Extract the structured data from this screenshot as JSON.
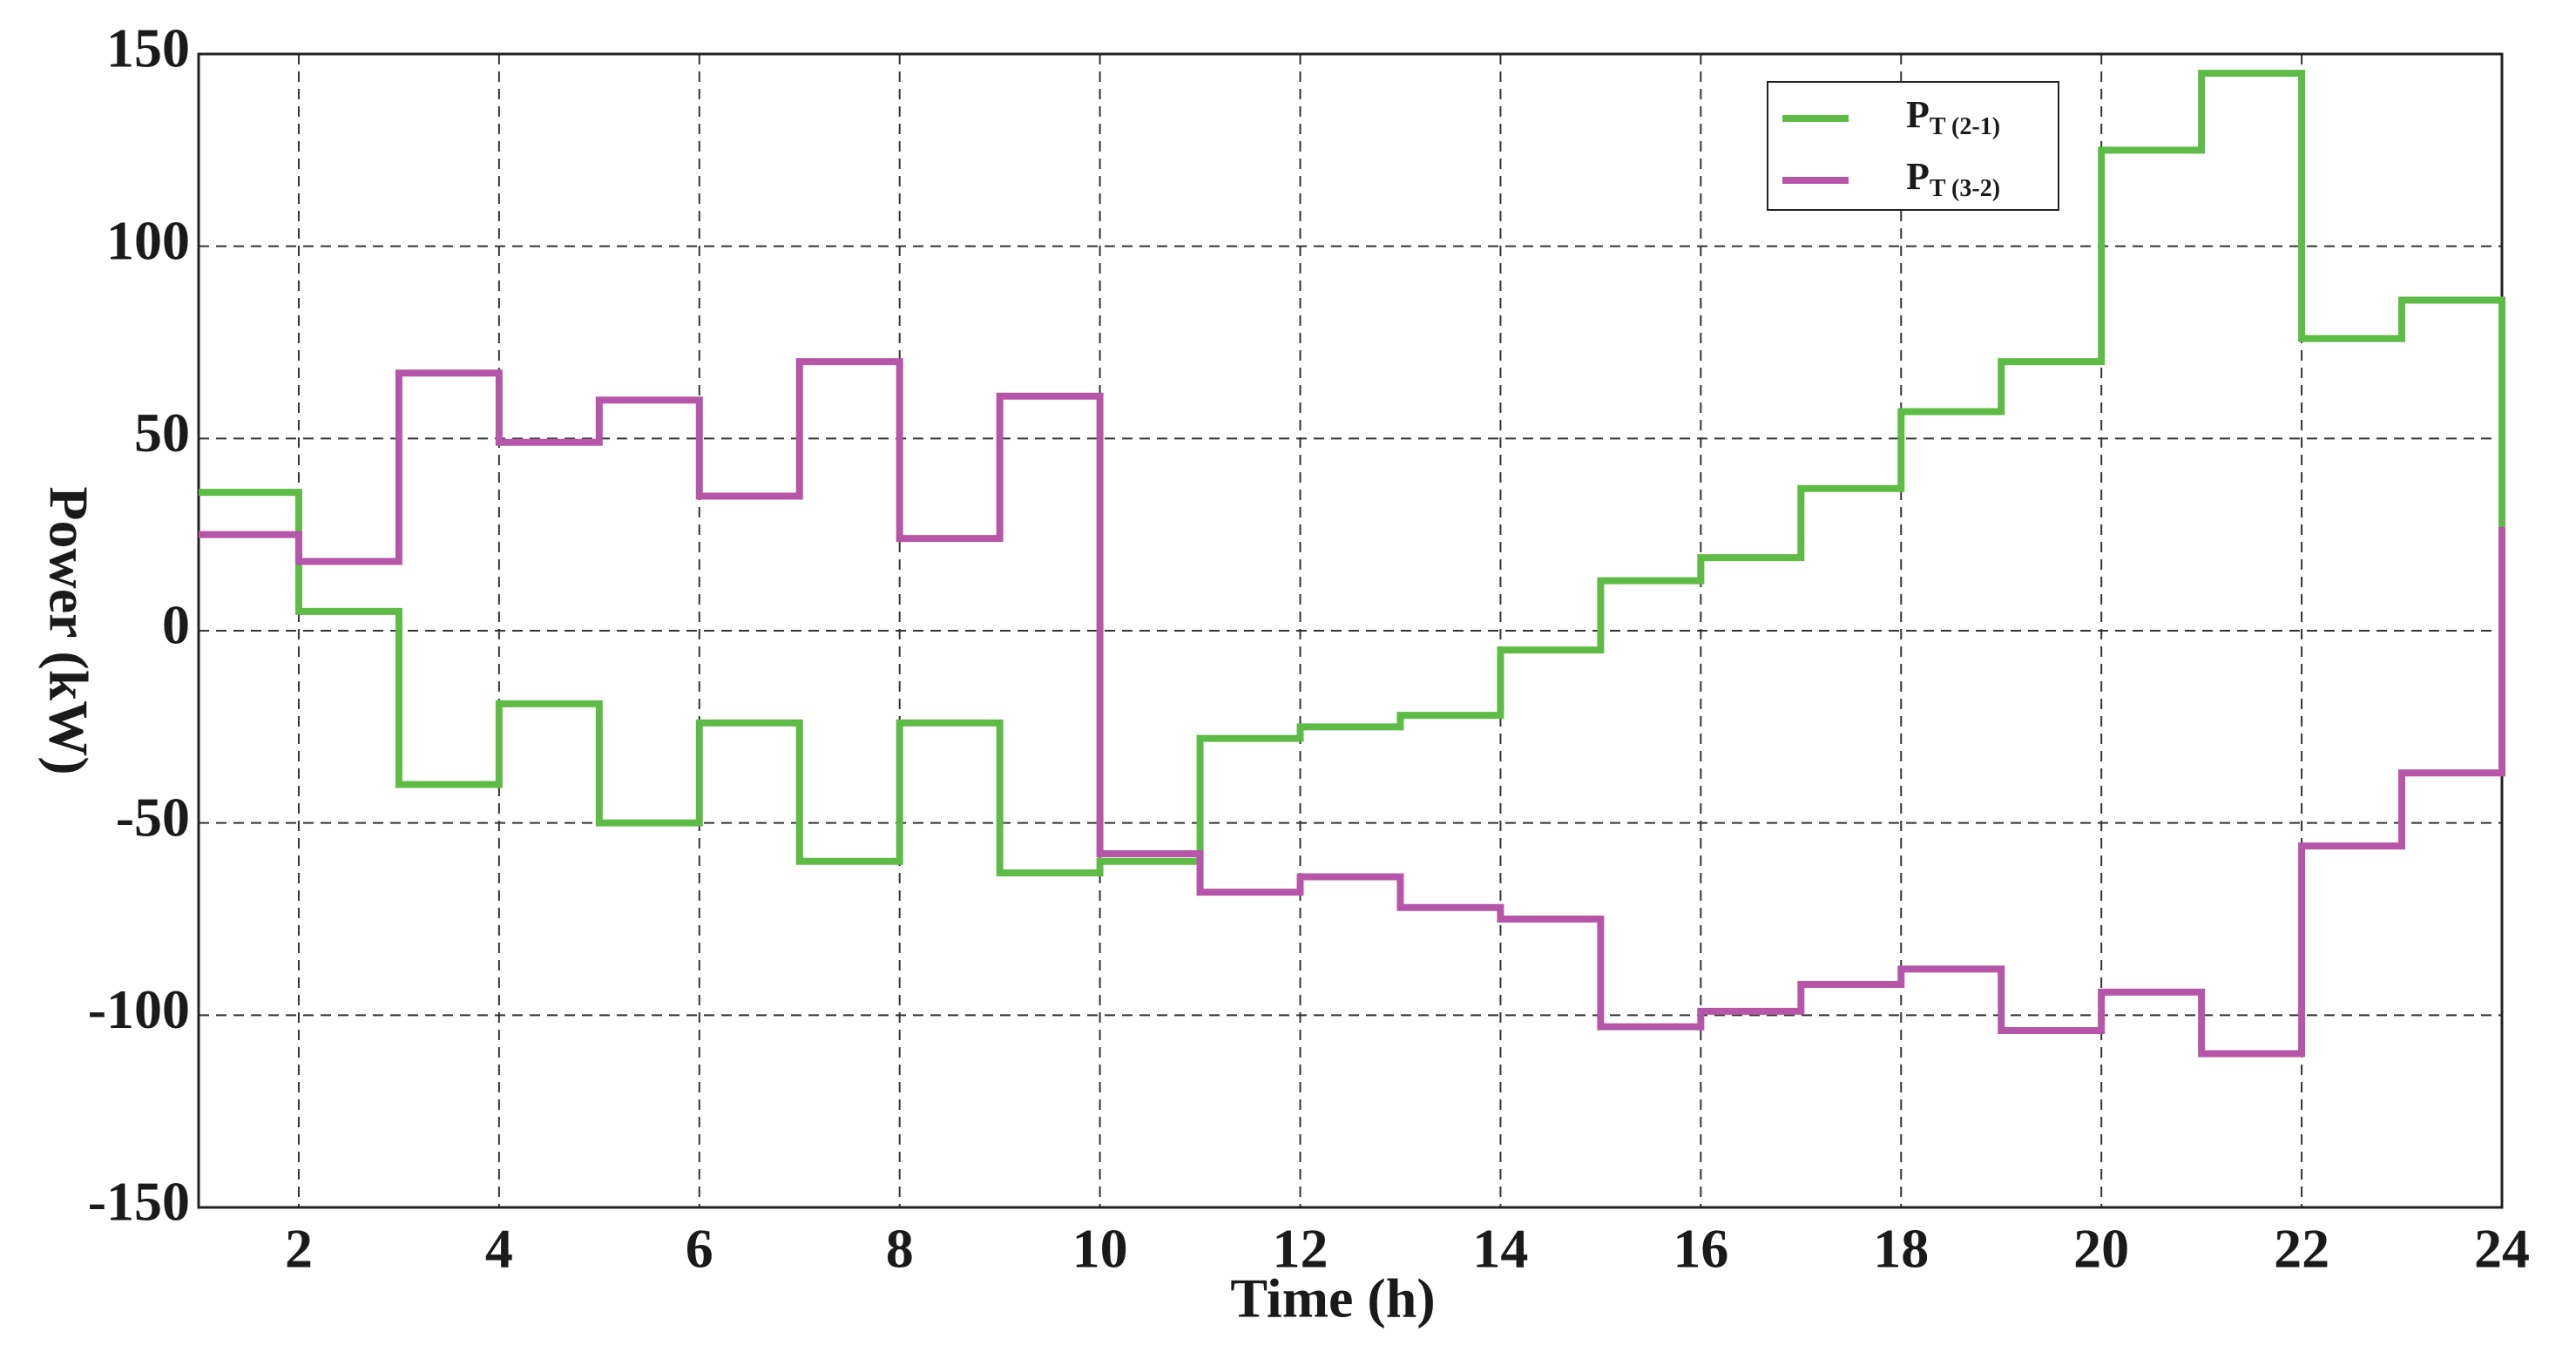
{
  "chart_data": {
    "type": "step",
    "x_label": "Time (h)",
    "y_label": "Power (kW)",
    "x": [
      1,
      2,
      3,
      4,
      5,
      6,
      7,
      8,
      9,
      10,
      11,
      12,
      13,
      14,
      15,
      16,
      17,
      18,
      19,
      20,
      21,
      22,
      23,
      24
    ],
    "series": [
      {
        "name": "PT (2-1)",
        "color": "#5dbb46",
        "values": [
          36,
          5,
          -40,
          -19,
          -50,
          -24,
          -60,
          -24,
          -63,
          -60,
          -28,
          -25,
          -22,
          -5,
          13,
          19,
          37,
          57,
          70,
          125,
          145,
          76,
          86,
          27
        ]
      },
      {
        "name": "PT (3-2)",
        "color": "#b656a8",
        "values": [
          25,
          18,
          67,
          49,
          60,
          35,
          70,
          24,
          61,
          -58,
          -68,
          -64,
          -72,
          -75,
          -103,
          -99,
          -92,
          -88,
          -104,
          -94,
          -110,
          -56,
          -37,
          27
        ]
      }
    ],
    "xlim": [
      1,
      24
    ],
    "xticks": [
      2,
      4,
      6,
      8,
      10,
      12,
      14,
      16,
      18,
      20,
      22,
      24
    ],
    "ylim": [
      -150,
      150
    ],
    "yticks": [
      -150,
      -100,
      -50,
      0,
      50,
      100,
      150
    ],
    "grid": true,
    "legend": "upper right"
  }
}
